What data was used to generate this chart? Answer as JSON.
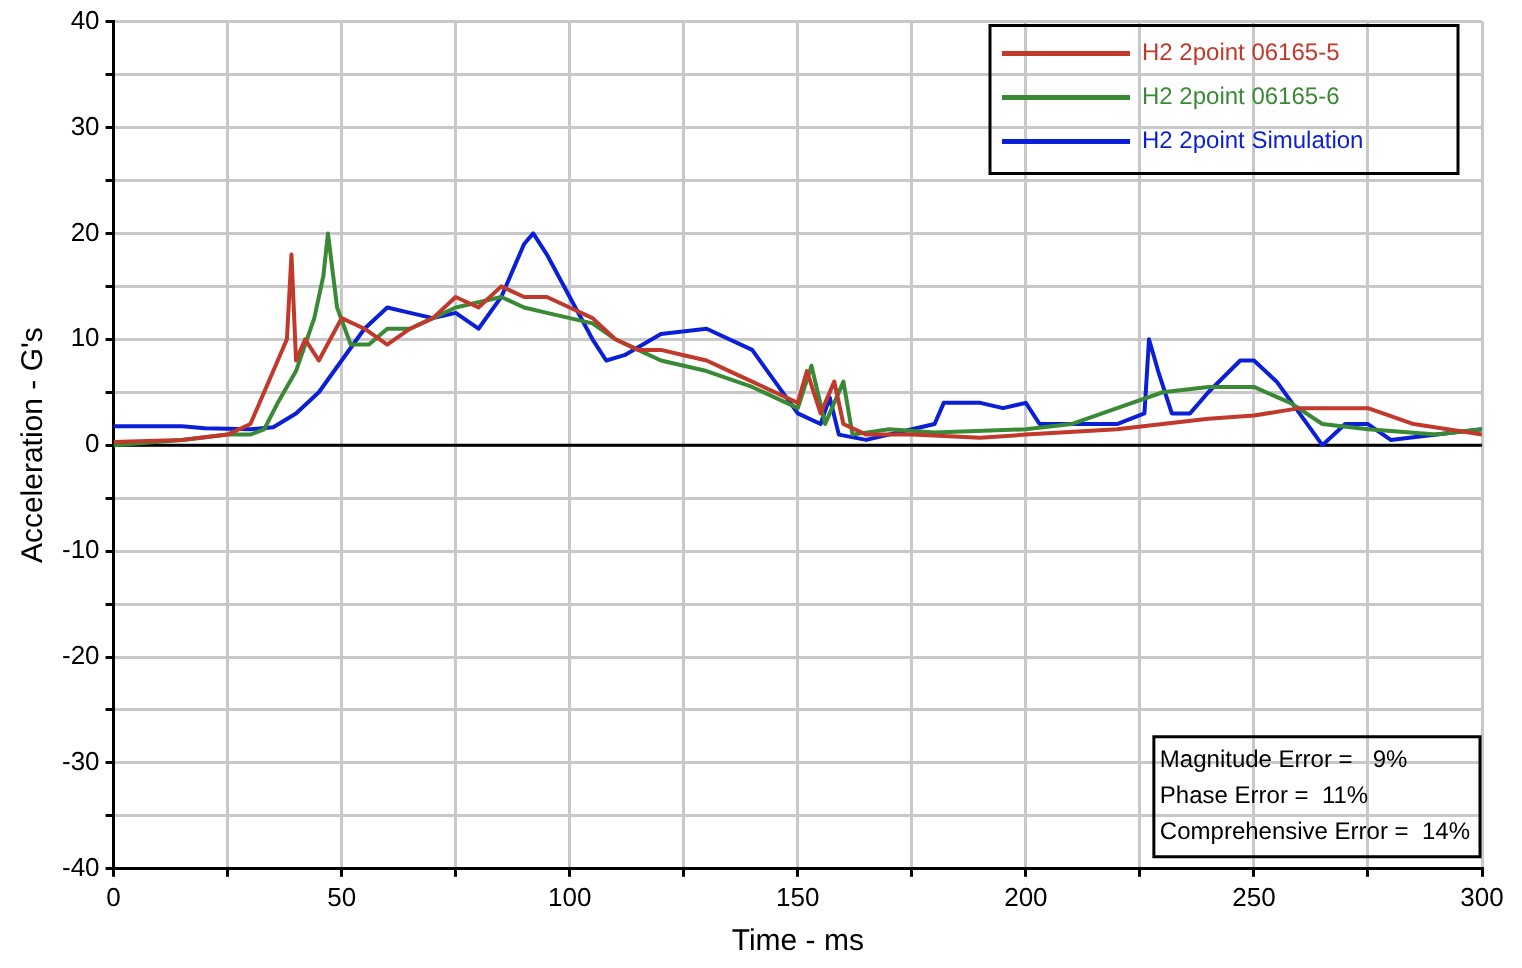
{
  "chart_data": {
    "type": "line",
    "xlabel": "Time - ms",
    "ylabel": "Acceleration - G's",
    "xlim": [
      0,
      300
    ],
    "ylim": [
      -40,
      40
    ],
    "xticks": [
      0,
      {
        "value": 25,
        "label": null
      },
      50,
      {
        "value": 75,
        "label": null
      },
      100,
      {
        "value": 125,
        "label": null
      },
      150,
      {
        "value": 175,
        "label": null
      },
      200,
      {
        "value": 225,
        "label": null
      },
      250,
      {
        "value": 275,
        "label": null
      },
      300
    ],
    "yticks": [
      -40,
      {
        "value": -35,
        "label": null
      },
      -30,
      {
        "value": -25,
        "label": null
      },
      -20,
      {
        "value": -15,
        "label": null
      },
      -10,
      {
        "value": -5,
        "label": null
      },
      0,
      {
        "value": 5,
        "label": null
      },
      10,
      {
        "value": 15,
        "label": null
      },
      20,
      {
        "value": 25,
        "label": null
      },
      30,
      {
        "value": 35,
        "label": null
      },
      40
    ],
    "grid": true,
    "legend": "top right",
    "marker": "none",
    "line_style": "solid",
    "ref_lines": [
      {
        "axis": "y",
        "value": 0,
        "color": "#000000"
      }
    ],
    "annotations": [
      "Magnitude Error =   9%",
      "Phase Error =  11%",
      "Comprehensive Error =  14%"
    ],
    "series": [
      {
        "name": "H2 2point 06165-5",
        "color": "#c0392b",
        "x": [
          0,
          15,
          25,
          30,
          35,
          38,
          39,
          40,
          42,
          45,
          50,
          55,
          60,
          65,
          70,
          75,
          80,
          85,
          90,
          95,
          100,
          105,
          110,
          115,
          120,
          125,
          130,
          135,
          140,
          145,
          150,
          152,
          155,
          158,
          160,
          165,
          175,
          190,
          200,
          220,
          240,
          250,
          260,
          275,
          285,
          300
        ],
        "values": [
          0.3,
          0.5,
          1,
          2,
          7,
          10,
          18,
          8,
          10,
          8,
          12,
          11,
          9.5,
          11,
          12,
          14,
          13,
          15,
          14,
          14,
          13,
          12,
          10,
          9,
          9,
          8.5,
          8,
          7,
          6,
          5,
          4,
          7,
          3,
          6,
          2,
          1,
          1,
          0.7,
          1,
          1.5,
          2.5,
          2.8,
          3.5,
          3.5,
          2,
          1
        ]
      },
      {
        "name": "H2 2point 06165-6",
        "color": "#3a8a35",
        "x": [
          0,
          15,
          25,
          30,
          33,
          36,
          40,
          44,
          46,
          47,
          49,
          52,
          56,
          60,
          65,
          70,
          75,
          80,
          85,
          90,
          95,
          100,
          105,
          110,
          115,
          120,
          130,
          140,
          150,
          153,
          156,
          160,
          162,
          170,
          180,
          200,
          210,
          220,
          230,
          240,
          250,
          258,
          265,
          275,
          290,
          300
        ],
        "values": [
          0,
          0.5,
          1,
          1,
          1.5,
          4,
          7,
          12,
          16,
          20,
          13,
          9.5,
          9.5,
          11,
          11,
          12,
          13,
          13.5,
          14,
          13,
          12.5,
          12,
          11.5,
          10,
          9,
          8,
          7,
          5.5,
          3.5,
          7.5,
          2,
          6,
          1,
          1.5,
          1.2,
          1.5,
          2,
          3.5,
          5,
          5.5,
          5.5,
          4,
          2,
          1.5,
          1,
          1.5
        ]
      },
      {
        "name": "H2 2point Simulation",
        "color": "#0a1fd6",
        "x": [
          0,
          15,
          20,
          30,
          35,
          40,
          45,
          50,
          55,
          60,
          65,
          70,
          75,
          80,
          85,
          90,
          92,
          95,
          100,
          105,
          108,
          112,
          120,
          130,
          140,
          145,
          150,
          155,
          157,
          159,
          165,
          175,
          180,
          182,
          190,
          195,
          200,
          203,
          210,
          220,
          226,
          227,
          229,
          232,
          236,
          240,
          247,
          250,
          255,
          260,
          265,
          270,
          275,
          280,
          290,
          300
        ],
        "values": [
          1.8,
          1.8,
          1.6,
          1.5,
          1.7,
          3,
          5,
          8,
          11,
          13,
          12.5,
          12,
          12.5,
          11,
          14,
          19,
          20,
          18,
          14,
          10,
          8,
          8.5,
          10.5,
          11,
          9,
          6,
          3,
          2,
          4.5,
          1,
          0.5,
          1.5,
          2,
          4,
          4,
          3.5,
          4,
          2,
          2,
          2,
          3,
          10,
          7,
          3,
          3,
          5,
          8,
          8,
          6,
          3,
          0,
          2,
          2,
          0.5,
          1,
          1.5
        ]
      }
    ]
  }
}
